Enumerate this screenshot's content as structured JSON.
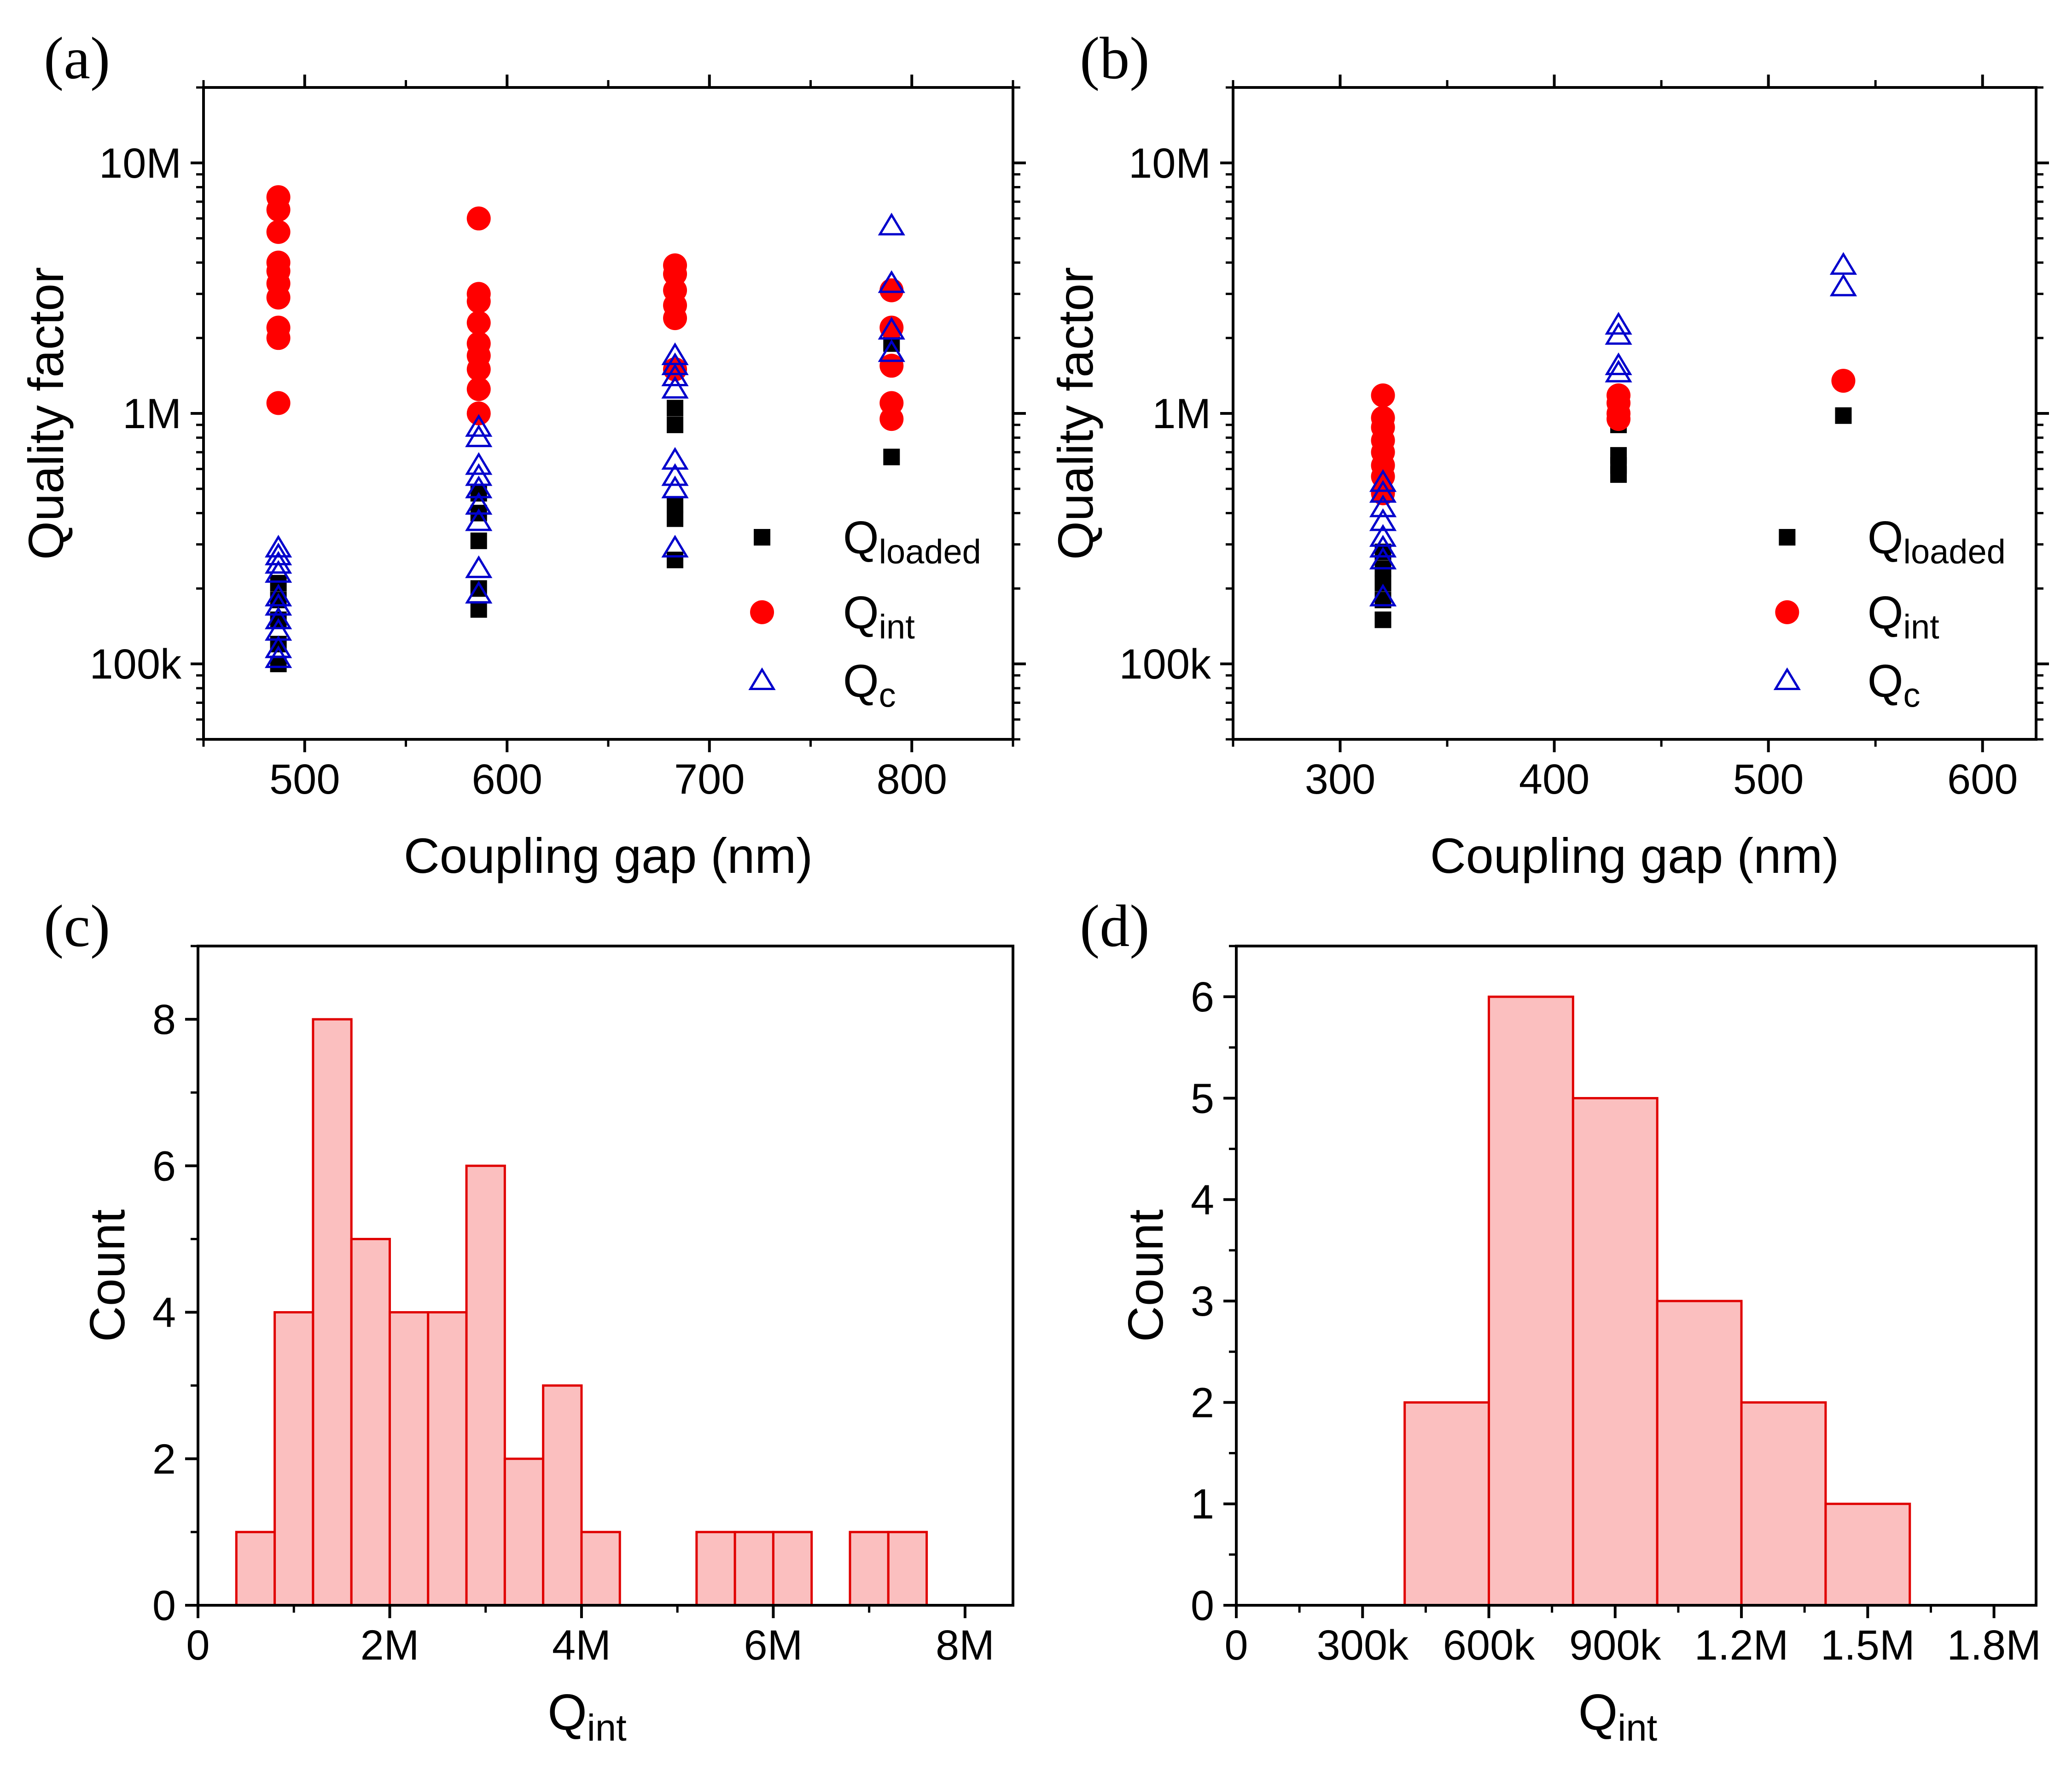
{
  "figure": {
    "panels": [
      "(a)",
      "(b)",
      "(c)",
      "(d)"
    ]
  },
  "colors": {
    "loaded": "#000000",
    "int": "#ff0000",
    "c": "#0000cc",
    "hist_fill": "#fbbfbf",
    "hist_edge": "#e00000"
  },
  "chart_data": [
    {
      "panel": "(a)",
      "type": "scatter",
      "xlabel": "Coupling gap (nm)",
      "ylabel": "Quality factor",
      "xlim": [
        450,
        850
      ],
      "xticks": [
        500,
        600,
        700,
        800
      ],
      "xtick_labels": [
        "500",
        "600",
        "700",
        "800"
      ],
      "yscale": "log",
      "ylim": [
        50000,
        20000000
      ],
      "yticks": [
        100000,
        1000000,
        10000000
      ],
      "ytick_labels": [
        "100k",
        "1M",
        "10M"
      ],
      "legend_position": "bottom-right",
      "series": [
        {
          "key": "loaded",
          "name": "Q",
          "sub": "loaded",
          "marker": "square",
          "points": [
            [
              487,
              100000
            ],
            [
              487,
              120000
            ],
            [
              487,
              150000
            ],
            [
              487,
              180000
            ],
            [
              487,
              210000
            ],
            [
              586,
              165000
            ],
            [
              586,
              200000
            ],
            [
              586,
              310000
            ],
            [
              586,
              400000
            ],
            [
              586,
              480000
            ],
            [
              683,
              260000
            ],
            [
              683,
              380000
            ],
            [
              683,
              430000
            ],
            [
              683,
              900000
            ],
            [
              683,
              1050000
            ],
            [
              790,
              670000
            ],
            [
              790,
              1900000
            ]
          ]
        },
        {
          "key": "int",
          "name": "Q",
          "sub": "int",
          "marker": "circle",
          "points": [
            [
              487,
              1100000
            ],
            [
              487,
              2000000
            ],
            [
              487,
              2200000
            ],
            [
              487,
              2900000
            ],
            [
              487,
              3300000
            ],
            [
              487,
              3700000
            ],
            [
              487,
              4000000
            ],
            [
              487,
              5300000
            ],
            [
              487,
              6500000
            ],
            [
              487,
              7300000
            ],
            [
              586,
              1000000
            ],
            [
              586,
              1250000
            ],
            [
              586,
              1500000
            ],
            [
              586,
              1700000
            ],
            [
              586,
              1900000
            ],
            [
              586,
              2300000
            ],
            [
              586,
              2800000
            ],
            [
              586,
              3000000
            ],
            [
              586,
              6000000
            ],
            [
              683,
              1500000
            ],
            [
              683,
              2400000
            ],
            [
              683,
              2700000
            ],
            [
              683,
              3100000
            ],
            [
              683,
              3600000
            ],
            [
              683,
              3900000
            ],
            [
              790,
              950000
            ],
            [
              790,
              1100000
            ],
            [
              790,
              1550000
            ],
            [
              790,
              2200000
            ],
            [
              790,
              3100000
            ]
          ]
        },
        {
          "key": "c",
          "name": "Q",
          "sub": "c",
          "marker": "triangle",
          "points": [
            [
              487,
              105000
            ],
            [
              487,
              115000
            ],
            [
              487,
              135000
            ],
            [
              487,
              150000
            ],
            [
              487,
              170000
            ],
            [
              487,
              185000
            ],
            [
              487,
              230000
            ],
            [
              487,
              250000
            ],
            [
              487,
              270000
            ],
            [
              487,
              290000
            ],
            [
              586,
              190000
            ],
            [
              586,
              240000
            ],
            [
              586,
              370000
            ],
            [
              586,
              430000
            ],
            [
              586,
              500000
            ],
            [
              586,
              560000
            ],
            [
              586,
              620000
            ],
            [
              586,
              800000
            ],
            [
              586,
              880000
            ],
            [
              683,
              290000
            ],
            [
              683,
              500000
            ],
            [
              683,
              560000
            ],
            [
              683,
              650000
            ],
            [
              683,
              1250000
            ],
            [
              683,
              1400000
            ],
            [
              683,
              1550000
            ],
            [
              683,
              1700000
            ],
            [
              790,
              1750000
            ],
            [
              790,
              2150000
            ],
            [
              790,
              3300000
            ],
            [
              790,
              5600000
            ]
          ]
        }
      ],
      "legend": [
        "Q_loaded",
        "Q_int",
        "Q_c"
      ]
    },
    {
      "panel": "(b)",
      "type": "scatter",
      "xlabel": "Coupling gap (nm)",
      "ylabel": "Quality factor",
      "xlim": [
        250,
        625
      ],
      "xticks": [
        300,
        400,
        500,
        600
      ],
      "xtick_labels": [
        "300",
        "400",
        "500",
        "600"
      ],
      "yscale": "log",
      "ylim": [
        50000,
        20000000
      ],
      "yticks": [
        100000,
        1000000,
        10000000
      ],
      "ytick_labels": [
        "100k",
        "1M",
        "10M"
      ],
      "legend_position": "bottom-right",
      "series": [
        {
          "key": "loaded",
          "name": "Q",
          "sub": "loaded",
          "marker": "square",
          "points": [
            [
              320,
              150000
            ],
            [
              320,
              180000
            ],
            [
              320,
              210000
            ],
            [
              320,
              240000
            ],
            [
              320,
              280000
            ],
            [
              430,
              570000
            ],
            [
              430,
              620000
            ],
            [
              430,
              680000
            ],
            [
              430,
              900000
            ],
            [
              535,
              980000
            ]
          ]
        },
        {
          "key": "int",
          "name": "Q",
          "sub": "int",
          "marker": "circle",
          "points": [
            [
              320,
              480000
            ],
            [
              320,
              560000
            ],
            [
              320,
              620000
            ],
            [
              320,
              700000
            ],
            [
              320,
              780000
            ],
            [
              320,
              880000
            ],
            [
              320,
              960000
            ],
            [
              320,
              1180000
            ],
            [
              430,
              950000
            ],
            [
              430,
              1000000
            ],
            [
              430,
              1100000
            ],
            [
              430,
              1180000
            ],
            [
              535,
              1350000
            ]
          ]
        },
        {
          "key": "c",
          "name": "Q",
          "sub": "c",
          "marker": "triangle",
          "points": [
            [
              320,
              185000
            ],
            [
              320,
              260000
            ],
            [
              320,
              290000
            ],
            [
              320,
              320000
            ],
            [
              320,
              370000
            ],
            [
              320,
              420000
            ],
            [
              320,
              480000
            ],
            [
              320,
              530000
            ],
            [
              430,
              1450000
            ],
            [
              430,
              1550000
            ],
            [
              430,
              2050000
            ],
            [
              430,
              2250000
            ],
            [
              535,
              3200000
            ],
            [
              535,
              3900000
            ]
          ]
        }
      ],
      "legend": [
        "Q_loaded",
        "Q_int",
        "Q_c"
      ]
    },
    {
      "panel": "(c)",
      "type": "histogram",
      "xlabel": "Q",
      "xlabel_sub": "int",
      "ylabel": "Count",
      "xlim": [
        0,
        8500000
      ],
      "xticks": [
        0,
        2000000,
        4000000,
        6000000,
        8000000
      ],
      "xtick_labels": [
        "0",
        "2M",
        "4M",
        "6M",
        "8M"
      ],
      "ylim": [
        0,
        9
      ],
      "yticks": [
        0,
        2,
        4,
        6,
        8
      ],
      "ytick_labels": [
        "0",
        "2",
        "4",
        "6",
        "8"
      ],
      "bin_start": 400000,
      "bin_width": 400000,
      "counts": [
        1,
        4,
        8,
        5,
        4,
        4,
        6,
        2,
        3,
        1,
        0,
        0,
        1,
        1,
        1,
        0,
        1,
        1
      ]
    },
    {
      "panel": "(d)",
      "type": "histogram",
      "xlabel": "Q",
      "xlabel_sub": "int",
      "ylabel": "Count",
      "xlim": [
        0,
        1900000
      ],
      "xticks": [
        0,
        300000,
        600000,
        900000,
        1200000,
        1500000,
        1800000
      ],
      "xtick_labels": [
        "0",
        "300k",
        "600k",
        "900k",
        "1.2M",
        "1.5M",
        "1.8M"
      ],
      "ylim": [
        0,
        6.5
      ],
      "yticks": [
        0,
        1,
        2,
        3,
        4,
        5,
        6
      ],
      "ytick_labels": [
        "0",
        "1",
        "2",
        "3",
        "4",
        "5",
        "6"
      ],
      "bin_start": 400000,
      "bin_width": 200000,
      "counts": [
        2,
        6,
        5,
        3,
        2,
        1
      ]
    }
  ]
}
